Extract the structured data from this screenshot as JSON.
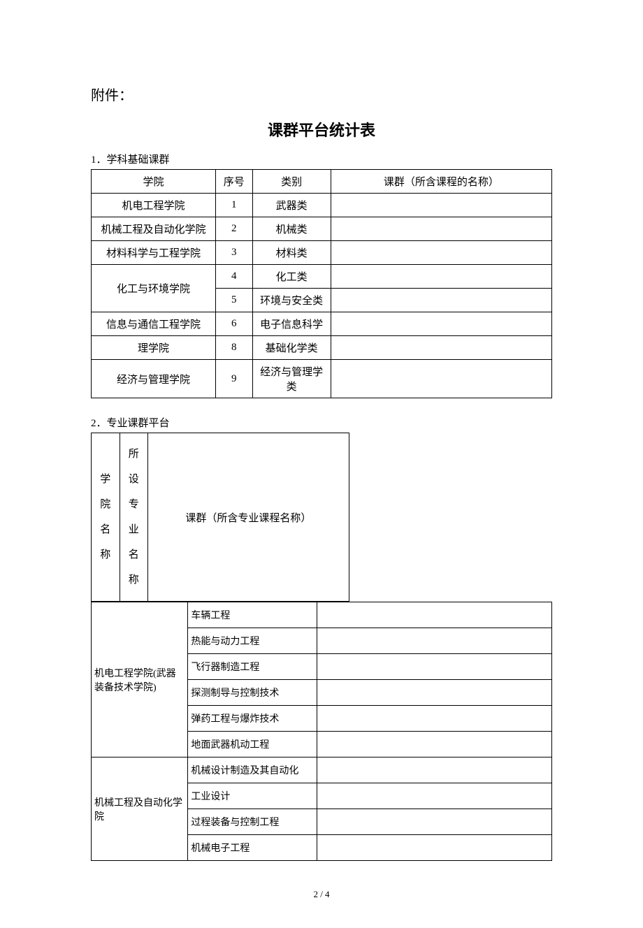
{
  "attachment": "附件：",
  "title": "课群平台统计表",
  "section1": {
    "label": "1．学科基础课群",
    "headers": [
      "学院",
      "序号",
      "类别",
      "课群（所含课程的名称）"
    ],
    "rows": [
      {
        "dept": "机电工程学院",
        "num": "1",
        "cat": "武器类",
        "courses": "",
        "rowspan": 1
      },
      {
        "dept": "机械工程及自动化学院",
        "num": "2",
        "cat": "机械类",
        "courses": "",
        "rowspan": 1
      },
      {
        "dept": "材料科学与工程学院",
        "num": "3",
        "cat": "材料类",
        "courses": "",
        "rowspan": 1
      },
      {
        "dept": "化工与环境学院",
        "num": "4",
        "cat": "化工类",
        "courses": "",
        "rowspan": 2
      },
      {
        "dept": "",
        "num": "5",
        "cat": "环境与安全类",
        "courses": "",
        "rowspan": 0
      },
      {
        "dept": "信息与通信工程学院",
        "num": "6",
        "cat": "电子信息科学",
        "courses": "",
        "rowspan": 1
      },
      {
        "dept": "理学院",
        "num": "8",
        "cat": "基础化学类",
        "courses": "",
        "rowspan": 1
      },
      {
        "dept": "经济与管理学院",
        "num": "9",
        "cat": "经济与管理学类",
        "courses": "",
        "rowspan": 1
      }
    ]
  },
  "section2": {
    "label": "2．专业课群平台",
    "headers": [
      "学院名称",
      "所设专业名称",
      "课群（所含专业课程名称）"
    ],
    "table3": [
      {
        "dept": "机电工程学院(武器装备技术学院)",
        "majors": [
          "车辆工程",
          "热能与动力工程",
          "飞行器制造工程",
          "探测制导与控制技术",
          "弹药工程与爆炸技术",
          "地面武器机动工程"
        ]
      },
      {
        "dept": "机械工程及自动化学院",
        "majors": [
          "机械设计制造及其自动化",
          "工业设计",
          "过程装备与控制工程",
          "机械电子工程"
        ]
      }
    ]
  },
  "pagenum": "2 / 4"
}
